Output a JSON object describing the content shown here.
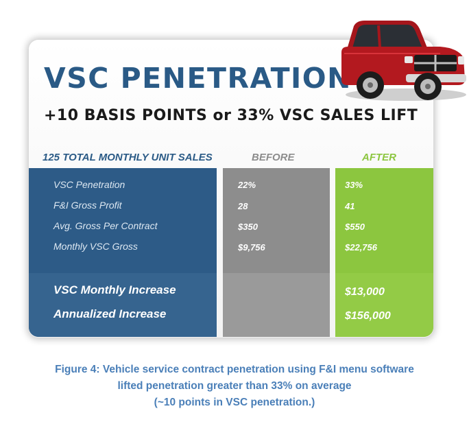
{
  "title": "VSC PENETRATION",
  "subtitle": "+10 BASIS POINTS or 33% VSC SALES LIFT",
  "table": {
    "header_label": "125 TOTAL MONTHLY UNIT SALES",
    "header_before": "BEFORE",
    "header_after": "AFTER",
    "rows": [
      {
        "label": "VSC Penetration",
        "before": "22%",
        "after": "33%"
      },
      {
        "label": "F&I Gross Profit",
        "before": "28",
        "after": "41"
      },
      {
        "label": "Avg. Gross Per Contract",
        "before": "$350",
        "after": "$550"
      },
      {
        "label": "Monthly VSC Gross",
        "before": "$9,756",
        "after": "$22,756"
      }
    ],
    "totals": [
      {
        "label": "VSC Monthly Increase",
        "after": "$13,000"
      },
      {
        "label": "Annualized Increase",
        "after": "$156,000"
      }
    ]
  },
  "caption": {
    "line1": "Figure 4: Vehicle service contract penetration using F&I menu software",
    "line2": "lifted penetration greater than 33% on average",
    "line3": "(~10 points in VSC penetration.)"
  },
  "colors": {
    "title": "#2a5a86",
    "blue_column": "#2d5b87",
    "gray_column": "#8d8d8d",
    "green_column": "#8cc63f",
    "caption": "#4a7fb8",
    "truck": "#b3191f"
  },
  "icons": {
    "truck": "red-pickup-truck-image"
  }
}
